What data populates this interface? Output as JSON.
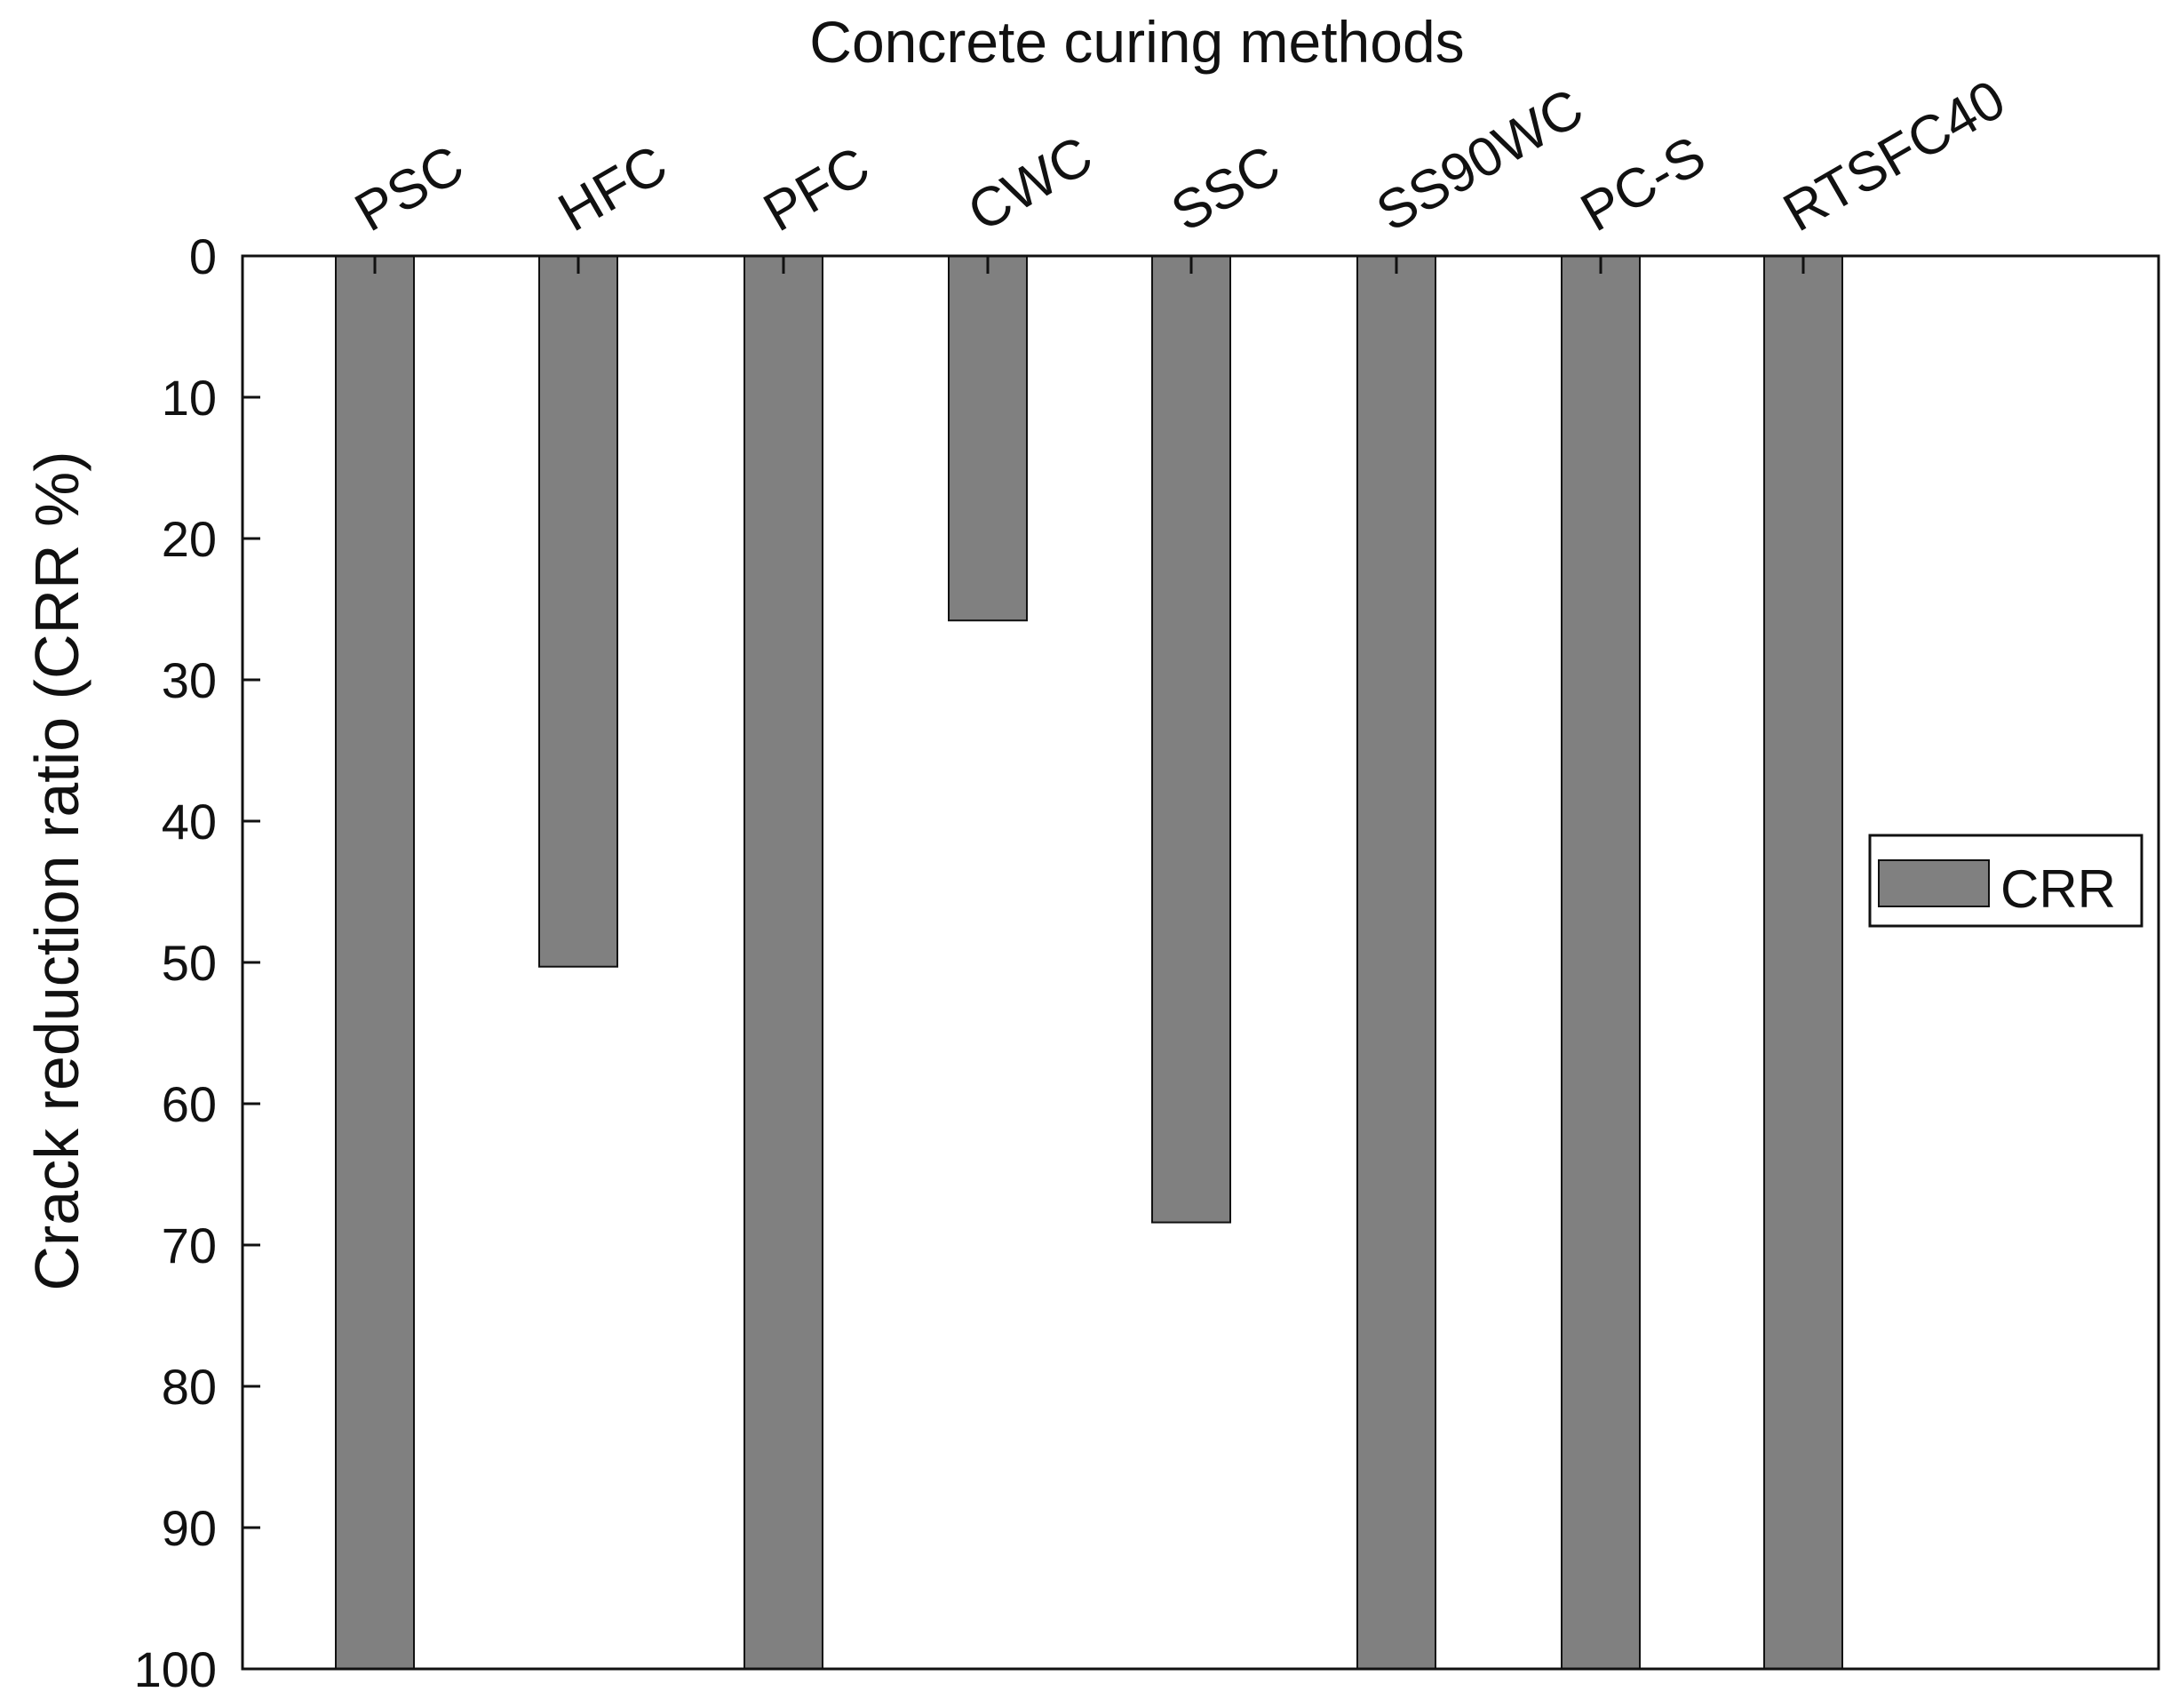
{
  "chart_data": {
    "type": "bar",
    "title": "Concrete curing methods",
    "xlabel": "Concrete curing methods",
    "ylabel": "Crack reduction ratio (CRR %)",
    "categories": [
      "PSC",
      "HFC",
      "PFC",
      "CWC",
      "SSC",
      "SS90WC",
      "PC-S",
      "RTSFC40"
    ],
    "series": [
      {
        "name": "CRR",
        "values": [
          100,
          50.3,
          100,
          25.8,
          68.4,
          100,
          100,
          100
        ]
      }
    ],
    "ylim": [
      0,
      100
    ],
    "y_inverted": true,
    "yticks": [
      0,
      10,
      20,
      30,
      40,
      50,
      60,
      70,
      80,
      90,
      100
    ],
    "grid": false,
    "legend_position": "right",
    "colors": {
      "bar": "#808080",
      "axis": "#111111",
      "background": "#ffffff"
    }
  }
}
